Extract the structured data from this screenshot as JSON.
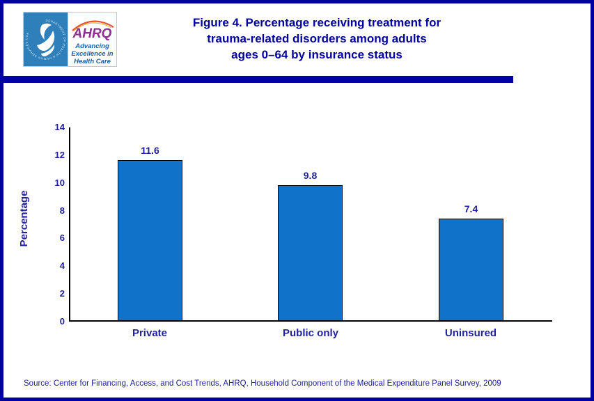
{
  "header": {
    "logo": {
      "hhs_seal_text": "DEPARTMENT OF HEALTH & HUMAN SERVICES USA",
      "ahrq_name": "AHRQ",
      "tagline_lines": [
        "Advancing",
        "Excellence in",
        "Health Care"
      ]
    },
    "title_lines": [
      "Figure 4. Percentage receiving treatment for",
      "trauma-related disorders among adults",
      "ages 0–64 by insurance status"
    ]
  },
  "chart_data": {
    "type": "bar",
    "title": "Figure 4. Percentage receiving treatment for trauma-related disorders among adults ages 0–64 by insurance status",
    "categories": [
      "Private",
      "Public only",
      "Uninsured"
    ],
    "series": [
      {
        "name": "Percentage receiving treatment",
        "values": [
          11.6,
          9.8,
          7.4
        ]
      }
    ],
    "value_labels": [
      "11.6",
      "9.8",
      "7.4"
    ],
    "xlabel": "",
    "ylabel": "Percentage",
    "ylim": [
      0,
      14
    ],
    "ytick_interval": 2,
    "ytick_labels": [
      "0",
      "2",
      "4",
      "6",
      "8",
      "10",
      "12",
      "14"
    ],
    "grid": false,
    "legend": "none",
    "bar_color": "#1072C8",
    "bar_border_color": "#000000"
  },
  "footer": {
    "source_text": "Source: Center for Financing, Access, and Cost Trends, AHRQ, Household Component of the Medical Expenditure Panel Survey, 2009"
  },
  "colors": {
    "frame_navy": "#0000A0",
    "title_text": "#0000A0",
    "chart_text": "#21219B",
    "hhs_logo_blue": "#2F7FBA",
    "ahrq_purple": "#8E2E91",
    "tagline_blue": "#1A5DA6",
    "arc_orange": "#E4572E"
  }
}
